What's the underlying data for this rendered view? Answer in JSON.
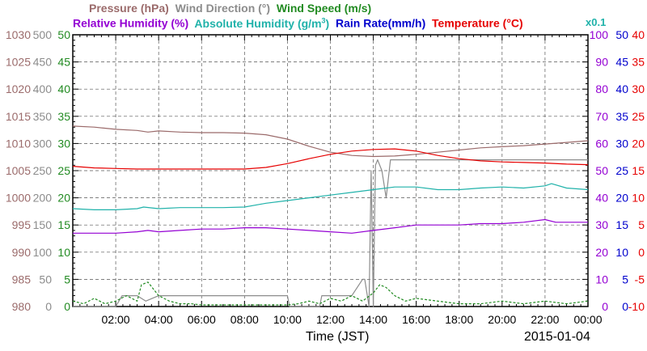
{
  "chart_data": {
    "type": "line",
    "date": "2015-01-04",
    "xlabel": "Time (JST)",
    "x_ticks": [
      "02:00",
      "04:00",
      "06:00",
      "08:00",
      "10:00",
      "12:00",
      "14:00",
      "16:00",
      "18:00",
      "20:00",
      "22:00",
      "00:00"
    ],
    "x_range_hours": [
      0,
      24
    ],
    "grid": "dashed",
    "legend_row1": [
      {
        "name": "Pressure (hPa)",
        "color": "#9b6b6b"
      },
      {
        "name": "Wind Direction (°)",
        "color": "#8c8c8c"
      },
      {
        "name": "Wind Speed (m/s)",
        "color": "#228b22"
      }
    ],
    "legend_row2": [
      {
        "name": "Relative Humidity (%)",
        "color": "#9400d3"
      },
      {
        "name": "Absolute Humidity (g/m",
        "sup": "3",
        "tail": ")",
        "color": "#20b2aa"
      },
      {
        "name": "Rain Rate(mm/h)",
        "color": "#0000cd"
      },
      {
        "name": "Temperature (°C)",
        "color": "#e60000"
      }
    ],
    "rain_scale_note": "x0.1",
    "axes": [
      {
        "id": "pressure",
        "side": "left",
        "color": "#9b6b6b",
        "ticks": [
          "980",
          "985",
          "990",
          "995",
          "1000",
          "1005",
          "1010",
          "1015",
          "1020",
          "1025",
          "1030"
        ],
        "range": [
          980,
          1030
        ]
      },
      {
        "id": "wind_dir",
        "side": "left",
        "color": "#8c8c8c",
        "ticks": [
          "0",
          "50",
          "100",
          "150",
          "200",
          "250",
          "300",
          "350",
          "400",
          "450",
          "500"
        ],
        "range": [
          0,
          500
        ]
      },
      {
        "id": "wind_speed",
        "side": "left",
        "color": "#228b22",
        "ticks": [
          "0",
          "5",
          "10",
          "15",
          "20",
          "25",
          "30",
          "35",
          "40",
          "45",
          "50"
        ],
        "range": [
          0,
          50
        ]
      },
      {
        "id": "rh",
        "side": "right",
        "color": "#9400d3",
        "ticks": [
          "0",
          "10",
          "20",
          "30",
          "40",
          "50",
          "60",
          "70",
          "80",
          "90",
          "100"
        ],
        "range": [
          0,
          100
        ]
      },
      {
        "id": "rain",
        "side": "right",
        "color": "#0000cd",
        "ticks": [
          "0",
          "5",
          "10",
          "15",
          "20",
          "25",
          "30",
          "35",
          "40",
          "45",
          "50"
        ],
        "range": [
          0,
          50
        ]
      },
      {
        "id": "temp",
        "side": "right",
        "color": "#e60000",
        "ticks": [
          "-10",
          "-5",
          "0",
          "5",
          "10",
          "15",
          "20",
          "25",
          "30",
          "35",
          "40"
        ],
        "range": [
          -10,
          40
        ]
      }
    ],
    "series": [
      {
        "name": "Pressure (hPa)",
        "axis": "pressure",
        "color": "#9b6b6b",
        "x": [
          0,
          1,
          2,
          3,
          3.5,
          4,
          5,
          6,
          7,
          8,
          9,
          10,
          11,
          12,
          13,
          14,
          15,
          16,
          17,
          18,
          19,
          20,
          21,
          22,
          23,
          24
        ],
        "y": [
          1013.2,
          1013.0,
          1012.6,
          1012.4,
          1012.1,
          1012.3,
          1012.1,
          1012.0,
          1012.0,
          1011.9,
          1011.6,
          1010.8,
          1009.5,
          1008.4,
          1007.8,
          1007.6,
          1007.7,
          1008.0,
          1008.4,
          1008.8,
          1009.2,
          1009.4,
          1009.6,
          1009.9,
          1010.2,
          1010.5
        ]
      },
      {
        "name": "Wind Direction (°)",
        "axis": "wind_dir",
        "color": "#8c8c8c",
        "x": [
          0,
          2,
          2.3,
          3,
          3.4,
          4,
          8,
          9,
          10,
          10.1,
          11,
          11.5,
          11.6,
          12,
          12.5,
          13,
          13.5,
          13.6,
          13.8,
          13.9,
          14.0,
          14.1,
          14.2,
          14.4,
          14.6,
          14.8,
          15,
          15.2,
          16,
          18,
          20,
          22,
          24
        ],
        "y": [
          0,
          0,
          20,
          20,
          10,
          20,
          20,
          20,
          20,
          0,
          0,
          0,
          20,
          20,
          20,
          20,
          50,
          50,
          0,
          250,
          0,
          260,
          270,
          250,
          200,
          270,
          270,
          270,
          270,
          270,
          270,
          270,
          270
        ]
      },
      {
        "name": "Wind Speed (m/s)",
        "axis": "wind_speed",
        "color": "#228b22",
        "dashed": true,
        "x": [
          0,
          0.5,
          1,
          1.5,
          2,
          2.5,
          3,
          3.2,
          3.5,
          4,
          4.5,
          5,
          5.5,
          6,
          7,
          8,
          9,
          10,
          10.5,
          11,
          11.5,
          12,
          12.5,
          13,
          13.5,
          14,
          14.3,
          14.6,
          15,
          15.5,
          16,
          17,
          18,
          19,
          20,
          21,
          22,
          23,
          24
        ],
        "y": [
          1,
          0.5,
          1.5,
          0.5,
          1,
          2,
          1,
          4,
          4.5,
          2,
          1,
          0.5,
          0.5,
          0.3,
          0.3,
          0.3,
          0.3,
          0.3,
          0.5,
          1,
          0.5,
          1.5,
          1,
          2,
          1,
          2.5,
          4,
          3.5,
          2,
          1,
          1.5,
          1,
          0.5,
          0.5,
          1,
          0.5,
          1,
          0.5,
          1
        ]
      },
      {
        "name": "Relative Humidity (%)",
        "axis": "rh",
        "color": "#9400d3",
        "x": [
          0,
          2,
          3,
          3.5,
          4,
          5,
          6,
          7,
          8,
          9,
          10,
          11,
          12,
          13,
          14,
          15,
          16,
          17,
          18,
          19,
          20,
          21,
          22,
          22.5,
          23,
          24
        ],
        "y": [
          27,
          27,
          27.5,
          28,
          27.5,
          28,
          28.5,
          28.5,
          29,
          29,
          28.5,
          28,
          27.5,
          27,
          28,
          29,
          30,
          30,
          30,
          30.5,
          30.5,
          31,
          32,
          31,
          31,
          31
        ]
      },
      {
        "name": "Absolute Humidity (g/m3)",
        "axis": "wind_speed",
        "color": "#20b2aa",
        "x": [
          0,
          1,
          2,
          3,
          3.3,
          4,
          5,
          6,
          7,
          8,
          9,
          10,
          11,
          12,
          13,
          14,
          15,
          16,
          17,
          18,
          19,
          20,
          21,
          22,
          22.3,
          23,
          24
        ],
        "y": [
          18,
          17.8,
          17.8,
          18,
          18.3,
          18,
          18.2,
          18.2,
          18.2,
          18.3,
          19,
          19.5,
          20,
          20.5,
          21,
          21.5,
          22,
          22,
          21.5,
          21.5,
          21.8,
          22,
          21.8,
          22.2,
          22.6,
          21.8,
          21.5
        ]
      },
      {
        "name": "Temperature (°C)",
        "axis": "temp",
        "color": "#e60000",
        "x": [
          0,
          1,
          2,
          3,
          4,
          5,
          6,
          7,
          8,
          9,
          10,
          11,
          12,
          13,
          14,
          15,
          16,
          17,
          18,
          19,
          20,
          21,
          22,
          23,
          24
        ],
        "y": [
          15.8,
          15.5,
          15.4,
          15.3,
          15.3,
          15.3,
          15.3,
          15.3,
          15.3,
          15.6,
          16.3,
          17.2,
          18.0,
          18.6,
          18.9,
          19.0,
          18.6,
          17.8,
          17.2,
          16.8,
          16.6,
          16.5,
          16.4,
          16.2,
          16.1
        ]
      }
    ]
  }
}
